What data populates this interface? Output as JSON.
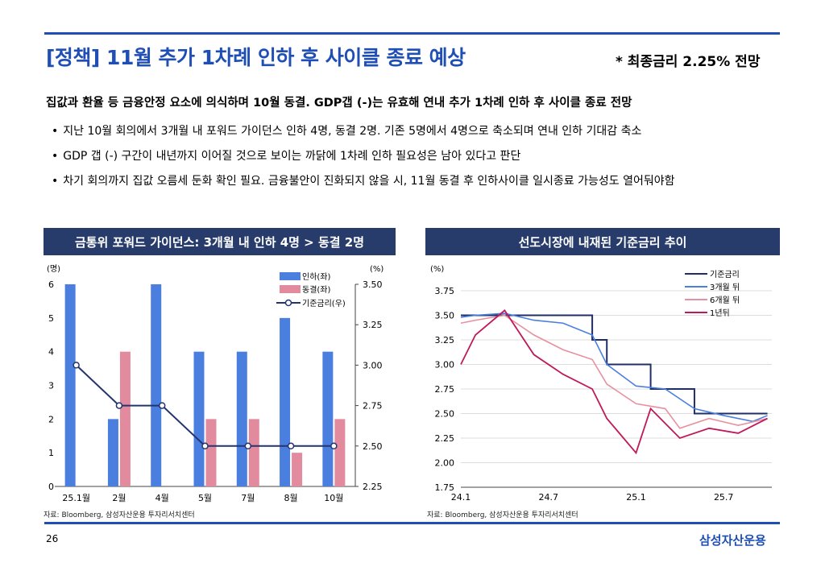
{
  "title": "[정책] 11월 추가 1차례 인하 후 사이클 종료 예상",
  "title_note": "* 최종금리 2.25% 전망",
  "summary": "집값과 환율 등 금융안정 요소에 의식하며 10월 동결. GDP갭 (-)는 유효해 연내 추가 1차례 인하 후 사이클 종료 전망",
  "bullets": [
    "지난 10월 회의에서 3개월 내 포워드 가이던스 인하 4명, 동결 2명. 기존 5명에서 4명으로 축소되며 연내 인하 기대감 축소",
    "GDP 갭 (-) 구간이 내년까지 이어질 것으로 보이는 까닭에 1차례 인하 필요성은 남아 있다고 판단",
    "차기 회의까지 집값 오름세 둔화 확인 필요. 금융불안이 진화되지 않을 시, 11월 동결 후 인하사이클 일시종료 가능성도 열어둬야함"
  ],
  "bullet_symbol": "•",
  "colors": {
    "accent": "#1f4fb5",
    "panel_header": "#283c6c",
    "cut_bar": "#4a7fe0",
    "hold_bar": "#e28b9f",
    "policy_line": "#24346e"
  },
  "left_panel_title": "금통위 포워드 가이던스: 3개월 내 인하 4명 > 동결 2명",
  "right_panel_title": "선도시장에 내재된 기준금리 추이",
  "source": "자료: Bloomberg, 삼성자산운용 투자리서치센터",
  "page_number": "26",
  "brand": "삼성자산운용",
  "chart_data": [
    {
      "type": "bar",
      "categories": [
        "25.1월",
        "2월",
        "4월",
        "5월",
        "7월",
        "8월",
        "10월"
      ],
      "ylabel_left": "(명)",
      "ylabel_right": "(%)",
      "ylim": [
        0,
        6
      ],
      "y_ticks": [
        0,
        1,
        2,
        3,
        4,
        5,
        6
      ],
      "y2lim": [
        2.25,
        3.5
      ],
      "y2_ticks": [
        "2.25",
        "2.50",
        "2.75",
        "3.00",
        "3.25",
        "3.50"
      ],
      "legend_position": "top-right",
      "series": [
        {
          "name": "인하(좌)",
          "kind": "bar",
          "axis": "left",
          "values": [
            6,
            2,
            6,
            4,
            4,
            5,
            4
          ]
        },
        {
          "name": "동결(좌)",
          "kind": "bar",
          "axis": "left",
          "values": [
            0,
            4,
            0,
            2,
            2,
            1,
            2
          ]
        },
        {
          "name": "기준금리(우)",
          "kind": "line",
          "axis": "right",
          "values": [
            3.0,
            2.75,
            2.75,
            2.5,
            2.5,
            2.5,
            2.5
          ]
        }
      ]
    },
    {
      "type": "line",
      "ylabel": "(%)",
      "ylim": [
        1.75,
        3.75
      ],
      "y_ticks": [
        "1.75",
        "2.00",
        "2.25",
        "2.50",
        "2.75",
        "3.00",
        "3.25",
        "3.50",
        "3.75"
      ],
      "x_ticks": [
        "24.1",
        "24.7",
        "25.1",
        "25.7"
      ],
      "legend_position": "top-right",
      "series": [
        {
          "name": "기준금리",
          "points": [
            [
              "24.1",
              3.5
            ],
            [
              "24.10",
              3.5
            ],
            [
              "24.10",
              3.25
            ],
            [
              "24.11",
              3.25
            ],
            [
              "24.11",
              3.0
            ],
            [
              "25.2",
              3.0
            ],
            [
              "25.2",
              2.75
            ],
            [
              "25.5",
              2.75
            ],
            [
              "25.5",
              2.5
            ],
            [
              "25.10",
              2.5
            ]
          ]
        },
        {
          "name": "3개월 뒤",
          "points": [
            [
              "24.1",
              3.48
            ],
            [
              "24.2",
              3.5
            ],
            [
              "24.4",
              3.52
            ],
            [
              "24.6",
              3.45
            ],
            [
              "24.8",
              3.42
            ],
            [
              "24.10",
              3.3
            ],
            [
              "24.11",
              3.0
            ],
            [
              "25.1",
              2.78
            ],
            [
              "25.3",
              2.75
            ],
            [
              "25.5",
              2.55
            ],
            [
              "25.7",
              2.48
            ],
            [
              "25.9",
              2.42
            ],
            [
              "25.10",
              2.48
            ]
          ]
        },
        {
          "name": "6개월 뒤",
          "points": [
            [
              "24.1",
              3.42
            ],
            [
              "24.2",
              3.45
            ],
            [
              "24.4",
              3.5
            ],
            [
              "24.6",
              3.3
            ],
            [
              "24.8",
              3.15
            ],
            [
              "24.10",
              3.05
            ],
            [
              "24.11",
              2.8
            ],
            [
              "25.1",
              2.6
            ],
            [
              "25.3",
              2.55
            ],
            [
              "25.4",
              2.35
            ],
            [
              "25.6",
              2.45
            ],
            [
              "25.8",
              2.38
            ],
            [
              "25.10",
              2.45
            ]
          ]
        },
        {
          "name": "1년뒤",
          "points": [
            [
              "24.1",
              3.0
            ],
            [
              "24.2",
              3.3
            ],
            [
              "24.4",
              3.55
            ],
            [
              "24.6",
              3.1
            ],
            [
              "24.8",
              2.9
            ],
            [
              "24.10",
              2.75
            ],
            [
              "24.11",
              2.45
            ],
            [
              "25.1",
              2.1
            ],
            [
              "25.2",
              2.55
            ],
            [
              "25.3",
              2.4
            ],
            [
              "25.4",
              2.25
            ],
            [
              "25.6",
              2.35
            ],
            [
              "25.8",
              2.3
            ],
            [
              "25.10",
              2.45
            ]
          ]
        }
      ]
    }
  ]
}
